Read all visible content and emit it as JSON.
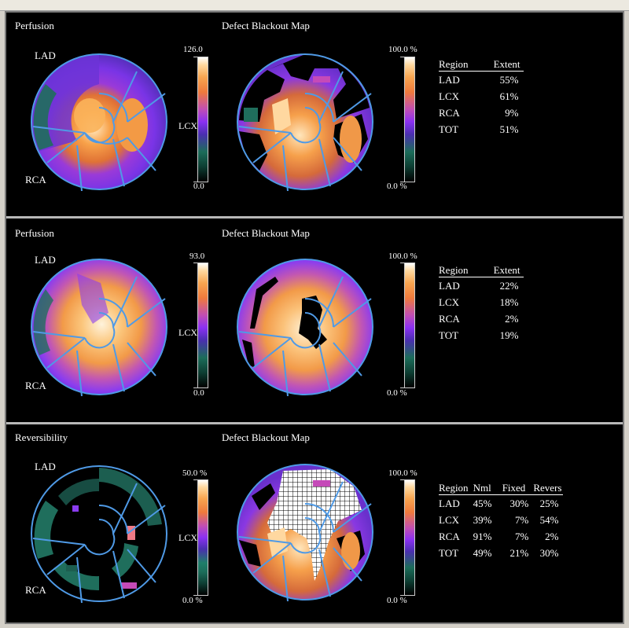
{
  "panels": [
    {
      "left_title": "Perfusion",
      "right_title": "Defect Blackout Map",
      "label_lad": "LAD",
      "label_rca": "RCA",
      "label_lcx": "LCX",
      "left_scale_max": "126.0",
      "left_scale_min": "0.0",
      "right_scale_max": "100.0 %",
      "right_scale_min": "0.0 %",
      "table": {
        "headers": [
          "Region",
          "Extent"
        ],
        "rows": [
          [
            "LAD",
            "55%"
          ],
          [
            "LCX",
            "61%"
          ],
          [
            "RCA",
            "9%"
          ],
          [
            "TOT",
            "51%"
          ]
        ]
      }
    },
    {
      "left_title": "Perfusion",
      "right_title": "Defect Blackout Map",
      "label_lad": "LAD",
      "label_rca": "RCA",
      "label_lcx": "LCX",
      "left_scale_max": "93.0",
      "left_scale_min": "0.0",
      "right_scale_max": "100.0 %",
      "right_scale_min": "0.0 %",
      "table": {
        "headers": [
          "Region",
          "Extent"
        ],
        "rows": [
          [
            "LAD",
            "22%"
          ],
          [
            "LCX",
            "18%"
          ],
          [
            "RCA",
            "2%"
          ],
          [
            "TOT",
            "19%"
          ]
        ]
      }
    },
    {
      "left_title": "Reversibility",
      "right_title": "Defect Blackout Map",
      "label_lad": "LAD",
      "label_rca": "RCA",
      "label_lcx": "LCX",
      "left_scale_max": "50.0 %",
      "left_scale_min": "0.0 %",
      "right_scale_max": "100.0 %",
      "right_scale_min": "0.0 %",
      "table": {
        "headers": [
          "Region",
          "Nml",
          "Fixed",
          "Revers"
        ],
        "rows": [
          [
            "LAD",
            "45%",
            "30%",
            "25%"
          ],
          [
            "LCX",
            "39%",
            "7%",
            "54%"
          ],
          [
            "RCA",
            "91%",
            "7%",
            "2%"
          ],
          [
            "TOT",
            "49%",
            "21%",
            "30%"
          ]
        ]
      }
    }
  ],
  "colors": {
    "ring_outline": "#4f9ae6",
    "hot": "#f4a24a",
    "white_hot": "#fff1d6",
    "purple": "#8a3cf0",
    "teal": "#1f6e5c",
    "magenta": "#c54ab8"
  }
}
